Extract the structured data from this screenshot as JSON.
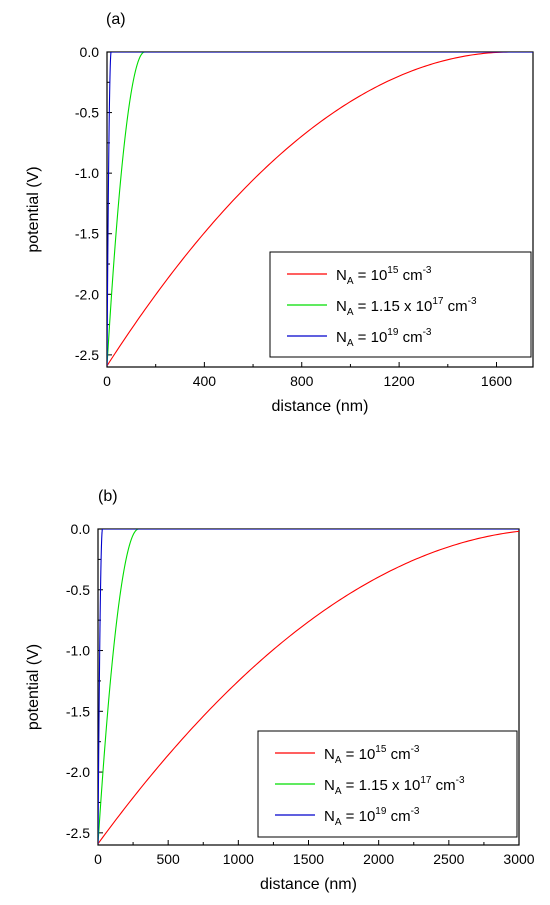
{
  "chart_data": [
    {
      "type": "line",
      "panel_label": "(a)",
      "xlabel": "distance (nm)",
      "ylabel": "potential (V)",
      "xlim": [
        0,
        1750
      ],
      "ylim": [
        -2.6,
        0.0
      ],
      "xticks": [
        0,
        400,
        800,
        1200,
        1600
      ],
      "yticks": [
        0.0,
        -0.5,
        -1.0,
        -1.5,
        -2.0,
        -2.5
      ],
      "xtick_labels": [
        "0",
        "400",
        "800",
        "1200",
        "1600"
      ],
      "ytick_labels": [
        "0.0",
        "-0.5",
        "-1.0",
        "-1.5",
        "-2.0",
        "-2.5"
      ],
      "grid": false,
      "legend_position": "bottom-right",
      "series": [
        {
          "name": "N_A = 10^15 cm^-3",
          "label_main": "N",
          "label_sub": "A",
          "label_mid": " = 10",
          "label_sup": "15",
          "label_unit": " cm",
          "label_unit_sup": "-3",
          "color": "#ff0000",
          "width_nm": 1660,
          "x": [
            0,
            200,
            400,
            600,
            800,
            1000,
            1200,
            1400,
            1600,
            1660,
            1750
          ],
          "y": [
            -2.59,
            -1.99,
            -1.47,
            -1.02,
            -0.65,
            -0.36,
            -0.16,
            -0.04,
            -0.0,
            0.0,
            0.0
          ]
        },
        {
          "name": "N_A = 1.15 x 10^17 cm^-3",
          "label_main": "N",
          "label_sub": "A",
          "label_mid": " = 1.15 x 10",
          "label_sup": "17",
          "label_unit": " cm",
          "label_unit_sup": "-3",
          "color": "#00dd00",
          "width_nm": 155,
          "x": [
            0,
            20,
            40,
            60,
            80,
            100,
            120,
            140,
            155
          ],
          "y": [
            -2.59,
            -1.95,
            -1.41,
            -0.95,
            -0.58,
            -0.3,
            -0.11,
            -0.01,
            0.0
          ]
        },
        {
          "name": "N_A = 10^19 cm^-3",
          "label_main": "N",
          "label_sub": "A",
          "label_mid": " = 10",
          "label_sup": "19",
          "label_unit": " cm",
          "label_unit_sup": "-3",
          "color": "#0000cc",
          "width_nm": 17,
          "x": [
            0,
            3,
            6,
            9,
            12,
            15,
            17
          ],
          "y": [
            -2.59,
            -1.78,
            -1.12,
            -0.62,
            -0.27,
            -0.05,
            0.0
          ]
        }
      ]
    },
    {
      "type": "line",
      "panel_label": "(b)",
      "xlabel": "distance (nm)",
      "ylabel": "potential (V)",
      "xlim": [
        0,
        3000
      ],
      "ylim": [
        -2.6,
        0.0
      ],
      "xticks": [
        0,
        500,
        1000,
        1500,
        2000,
        2500,
        3000
      ],
      "yticks": [
        0.0,
        -0.5,
        -1.0,
        -1.5,
        -2.0,
        -2.5
      ],
      "xtick_labels": [
        "0",
        "500",
        "1000",
        "1500",
        "2000",
        "2500",
        "3000"
      ],
      "ytick_labels": [
        "0.0",
        "-0.5",
        "-1.0",
        "-1.5",
        "-2.0",
        "-2.5"
      ],
      "grid": false,
      "legend_position": "bottom-right",
      "series": [
        {
          "name": "N_A = 10^15 cm^-3",
          "label_main": "N",
          "label_sub": "A",
          "label_mid": " = 10",
          "label_sup": "15",
          "label_unit": " cm",
          "label_unit_sup": "-3",
          "color": "#ff0000",
          "width_nm": 3280,
          "x": [
            0,
            500,
            1000,
            1500,
            2000,
            2500,
            3000
          ],
          "y": [
            -2.59,
            -1.84,
            -1.23,
            -0.75,
            -0.38,
            -0.14,
            -0.02
          ]
        },
        {
          "name": "N_A = 1.15 x 10^17 cm^-3",
          "label_main": "N",
          "label_sub": "A",
          "label_mid": " = 1.15 x 10",
          "label_sup": "17",
          "label_unit": " cm",
          "label_unit_sup": "-3",
          "color": "#00dd00",
          "width_nm": 290,
          "x": [
            0,
            50,
            100,
            150,
            200,
            250,
            290
          ],
          "y": [
            -2.59,
            -1.73,
            -1.04,
            -0.53,
            -0.19,
            -0.02,
            0.0
          ]
        },
        {
          "name": "N_A = 10^19 cm^-3",
          "label_main": "N",
          "label_sub": "A",
          "label_mid": " = 10",
          "label_sup": "19",
          "label_unit": " cm",
          "label_unit_sup": "-3",
          "color": "#0000cc",
          "width_nm": 32,
          "x": [
            0,
            8,
            16,
            24,
            32
          ],
          "y": [
            -2.59,
            -1.46,
            -0.65,
            -0.16,
            0.0
          ]
        }
      ]
    }
  ]
}
